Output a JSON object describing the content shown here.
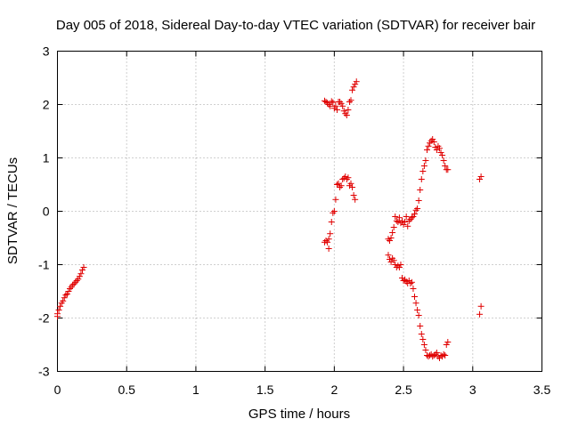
{
  "chart_data": {
    "type": "scatter",
    "title": "Day 005 of 2018, Sidereal Day-to-day VTEC variation (SDTVAR) for receiver bair",
    "xlabel": "GPS time / hours",
    "ylabel": "SDTVAR / TECUs",
    "xlim": [
      0,
      3.5
    ],
    "ylim": [
      -3,
      3
    ],
    "xticks": [
      0,
      0.5,
      1,
      1.5,
      2,
      2.5,
      3,
      3.5
    ],
    "xtick_labels": [
      "0",
      "0.5",
      "1",
      "1.5",
      "2",
      "2.5",
      "3",
      "3.5"
    ],
    "yticks": [
      -3,
      -2,
      -1,
      0,
      1,
      2,
      3
    ],
    "ytick_labels": [
      "-3",
      "-2",
      "-1",
      "0",
      "1",
      "2",
      "3"
    ],
    "grid": true,
    "marker": "+",
    "color": "#e00000",
    "series": [
      {
        "name": "early",
        "points": [
          [
            0.0,
            -1.97
          ],
          [
            0.0,
            -1.92
          ],
          [
            0.01,
            -1.85
          ],
          [
            0.02,
            -1.78
          ],
          [
            0.03,
            -1.72
          ],
          [
            0.04,
            -1.68
          ],
          [
            0.05,
            -1.62
          ],
          [
            0.06,
            -1.57
          ],
          [
            0.07,
            -1.55
          ],
          [
            0.08,
            -1.5
          ],
          [
            0.09,
            -1.45
          ],
          [
            0.1,
            -1.42
          ],
          [
            0.11,
            -1.38
          ],
          [
            0.12,
            -1.36
          ],
          [
            0.13,
            -1.33
          ],
          [
            0.14,
            -1.3
          ],
          [
            0.15,
            -1.27
          ],
          [
            0.16,
            -1.22
          ],
          [
            0.17,
            -1.17
          ],
          [
            0.18,
            -1.1
          ],
          [
            0.19,
            -1.05
          ]
        ]
      },
      {
        "name": "upper-2.0",
        "points": [
          [
            1.93,
            2.07
          ],
          [
            1.94,
            2.05
          ],
          [
            1.95,
            2.03
          ],
          [
            1.96,
            2.0
          ],
          [
            1.97,
            1.97
          ],
          [
            1.98,
            2.06
          ],
          [
            1.99,
            2.04
          ],
          [
            2.0,
            1.93
          ],
          [
            2.01,
            1.97
          ],
          [
            2.02,
            1.9
          ],
          [
            2.03,
            2.05
          ],
          [
            2.04,
            2.05
          ],
          [
            2.05,
            2.02
          ],
          [
            2.06,
            1.97
          ],
          [
            2.07,
            1.88
          ],
          [
            2.08,
            1.83
          ],
          [
            2.09,
            1.8
          ],
          [
            2.1,
            1.9
          ],
          [
            2.11,
            2.05
          ],
          [
            2.12,
            2.08
          ],
          [
            2.13,
            2.27
          ],
          [
            2.14,
            2.33
          ],
          [
            2.15,
            2.38
          ],
          [
            2.16,
            2.43
          ]
        ]
      },
      {
        "name": "middle-0.5",
        "points": [
          [
            1.93,
            -0.58
          ],
          [
            1.94,
            -0.55
          ],
          [
            1.95,
            -0.58
          ],
          [
            1.96,
            -0.52
          ],
          [
            1.96,
            -0.7
          ],
          [
            1.97,
            -0.42
          ],
          [
            1.98,
            -0.2
          ],
          [
            1.99,
            -0.03
          ],
          [
            2.0,
            0.0
          ],
          [
            2.01,
            0.22
          ],
          [
            2.02,
            0.5
          ],
          [
            2.03,
            0.52
          ],
          [
            2.04,
            0.45
          ],
          [
            2.05,
            0.48
          ],
          [
            2.06,
            0.6
          ],
          [
            2.07,
            0.62
          ],
          [
            2.08,
            0.65
          ],
          [
            2.09,
            0.6
          ],
          [
            2.1,
            0.63
          ],
          [
            2.11,
            0.48
          ],
          [
            2.12,
            0.52
          ],
          [
            2.13,
            0.45
          ],
          [
            2.14,
            0.3
          ],
          [
            2.15,
            0.22
          ]
        ]
      },
      {
        "name": "rising-after-2.4",
        "points": [
          [
            2.39,
            -0.52
          ],
          [
            2.4,
            -0.55
          ],
          [
            2.41,
            -0.5
          ],
          [
            2.42,
            -0.4
          ],
          [
            2.43,
            -0.3
          ],
          [
            2.44,
            -0.1
          ],
          [
            2.45,
            -0.18
          ],
          [
            2.46,
            -0.2
          ],
          [
            2.47,
            -0.12
          ],
          [
            2.48,
            -0.22
          ],
          [
            2.49,
            -0.18
          ],
          [
            2.5,
            -0.25
          ],
          [
            2.51,
            -0.2
          ],
          [
            2.52,
            -0.1
          ],
          [
            2.53,
            -0.28
          ],
          [
            2.54,
            -0.18
          ],
          [
            2.55,
            -0.15
          ],
          [
            2.56,
            -0.12
          ],
          [
            2.57,
            -0.1
          ],
          [
            2.58,
            -0.05
          ],
          [
            2.59,
            0.02
          ],
          [
            2.6,
            0.05
          ],
          [
            2.61,
            0.2
          ],
          [
            2.62,
            0.4
          ],
          [
            2.63,
            0.6
          ],
          [
            2.64,
            0.75
          ],
          [
            2.65,
            0.85
          ],
          [
            2.66,
            0.95
          ],
          [
            2.67,
            1.15
          ],
          [
            2.68,
            1.22
          ],
          [
            2.69,
            1.28
          ],
          [
            2.7,
            1.32
          ],
          [
            2.71,
            1.35
          ],
          [
            2.72,
            1.3
          ],
          [
            2.73,
            1.2
          ],
          [
            2.74,
            1.15
          ],
          [
            2.75,
            1.22
          ],
          [
            2.76,
            1.18
          ],
          [
            2.77,
            1.1
          ],
          [
            2.78,
            1.05
          ],
          [
            2.79,
            0.95
          ],
          [
            2.8,
            0.85
          ],
          [
            2.81,
            0.78
          ],
          [
            2.82,
            0.78
          ]
        ]
      },
      {
        "name": "falling-after-2.4",
        "points": [
          [
            2.39,
            -0.82
          ],
          [
            2.4,
            -0.9
          ],
          [
            2.41,
            -0.95
          ],
          [
            2.42,
            -0.88
          ],
          [
            2.43,
            -0.92
          ],
          [
            2.44,
            -1.0
          ],
          [
            2.45,
            -1.05
          ],
          [
            2.46,
            -1.02
          ],
          [
            2.47,
            -1.05
          ],
          [
            2.48,
            -1.0
          ],
          [
            2.49,
            -1.25
          ],
          [
            2.5,
            -1.3
          ],
          [
            2.51,
            -1.28
          ],
          [
            2.52,
            -1.32
          ],
          [
            2.53,
            -1.35
          ],
          [
            2.54,
            -1.3
          ],
          [
            2.55,
            -1.35
          ],
          [
            2.56,
            -1.33
          ],
          [
            2.57,
            -1.45
          ],
          [
            2.58,
            -1.6
          ],
          [
            2.59,
            -1.72
          ],
          [
            2.6,
            -1.85
          ],
          [
            2.61,
            -1.95
          ],
          [
            2.62,
            -2.15
          ],
          [
            2.63,
            -2.3
          ],
          [
            2.64,
            -2.4
          ],
          [
            2.65,
            -2.5
          ],
          [
            2.66,
            -2.6
          ],
          [
            2.67,
            -2.7
          ],
          [
            2.68,
            -2.72
          ],
          [
            2.69,
            -2.7
          ],
          [
            2.7,
            -2.68
          ],
          [
            2.71,
            -2.72
          ],
          [
            2.72,
            -2.7
          ],
          [
            2.73,
            -2.68
          ],
          [
            2.74,
            -2.65
          ],
          [
            2.75,
            -2.72
          ],
          [
            2.76,
            -2.75
          ],
          [
            2.77,
            -2.7
          ],
          [
            2.78,
            -2.72
          ],
          [
            2.79,
            -2.68
          ],
          [
            2.8,
            -2.7
          ],
          [
            2.81,
            -2.5
          ],
          [
            2.82,
            -2.45
          ]
        ]
      },
      {
        "name": "late",
        "points": [
          [
            3.05,
            0.6
          ],
          [
            3.06,
            0.65
          ],
          [
            3.05,
            -1.93
          ],
          [
            3.06,
            -1.78
          ]
        ]
      }
    ]
  }
}
